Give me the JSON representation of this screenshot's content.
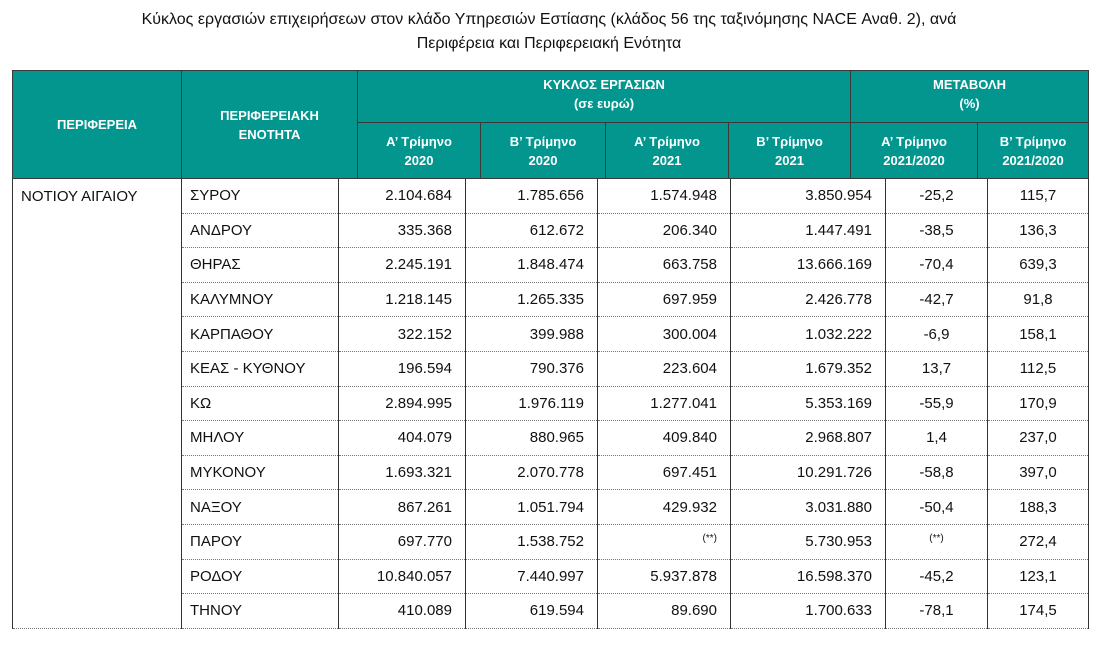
{
  "title_line1": "Κύκλος εργασιών επιχειρήσεων στον κλάδο Υπηρεσιών Εστίασης (κλάδος 56 της ταξινόμησης NACE Αναθ. 2), ανά",
  "title_line2": "Περιφέρεια και Περιφερειακή Ενότητα",
  "header": {
    "region": "ΠΕΡΙΦΕΡΕΙΑ",
    "unit_line1": "ΠΕΡΙΦΕΡΕΙΑΚΗ",
    "unit_line2": "ΕΝΟΤΗΤΑ",
    "turnover_line1": "ΚΥΚΛΟΣ ΕΡΓΑΣΙΩΝ",
    "turnover_line2": "(σε ευρώ)",
    "change_line1": "ΜΕΤΑΒΟΛΗ",
    "change_line2": "(%)",
    "cols": [
      [
        "Α’ Τρίμηνο",
        "2020"
      ],
      [
        "Β’ Τρίμηνο",
        "2020"
      ],
      [
        "Α’ Τρίμηνο",
        "2021"
      ],
      [
        "Β’ Τρίμηνο",
        "2021"
      ],
      [
        "Α’ Τρίμηνο",
        "2021/2020"
      ],
      [
        "Β’ Τρίμηνο",
        "2021/2020"
      ]
    ]
  },
  "region_name": "ΝΟΤΙΟΥ ΑΙΓΑΙΟΥ",
  "rows": [
    [
      "ΣΥΡΟΥ",
      "2.104.684",
      "1.785.656",
      "1.574.948",
      "3.850.954",
      "-25,2",
      "115,7"
    ],
    [
      "ΑΝΔΡΟΥ",
      "335.368",
      "612.672",
      "206.340",
      "1.447.491",
      "-38,5",
      "136,3"
    ],
    [
      "ΘΗΡΑΣ",
      "2.245.191",
      "1.848.474",
      "663.758",
      "13.666.169",
      "-70,4",
      "639,3"
    ],
    [
      "ΚΑΛΥΜΝΟΥ",
      "1.218.145",
      "1.265.335",
      "697.959",
      "2.426.778",
      "-42,7",
      "91,8"
    ],
    [
      "ΚΑΡΠΑΘΟΥ",
      "322.152",
      "399.988",
      "300.004",
      "1.032.222",
      "-6,9",
      "158,1"
    ],
    [
      "ΚΕΑΣ - ΚΥΘΝΟΥ",
      "196.594",
      "790.376",
      "223.604",
      "1.679.352",
      "13,7",
      "112,5"
    ],
    [
      "ΚΩ",
      "2.894.995",
      "1.976.119",
      "1.277.041",
      "5.353.169",
      "-55,9",
      "170,9"
    ],
    [
      "ΜΗΛΟΥ",
      "404.079",
      "880.965",
      "409.840",
      "2.968.807",
      "1,4",
      "237,0"
    ],
    [
      "ΜΥΚΟΝΟΥ",
      "1.693.321",
      "2.070.778",
      "697.451",
      "10.291.726",
      "-58,8",
      "397,0"
    ],
    [
      "ΝΑΞΟΥ",
      "867.261",
      "1.051.794",
      "429.932",
      "3.031.880",
      "-50,4",
      "188,3"
    ],
    [
      "ΠΑΡΟΥ",
      "697.770",
      "1.538.752",
      "(**)",
      "5.730.953",
      "(**)",
      "272,4"
    ],
    [
      "ΡΟΔΟΥ",
      "10.840.057",
      "7.440.997",
      "5.937.878",
      "16.598.370",
      "-45,2",
      "123,1"
    ],
    [
      "ΤΗΝΟΥ",
      "410.089",
      "619.594",
      "89.690",
      "1.700.633",
      "-78,1",
      "174,5"
    ]
  ]
}
